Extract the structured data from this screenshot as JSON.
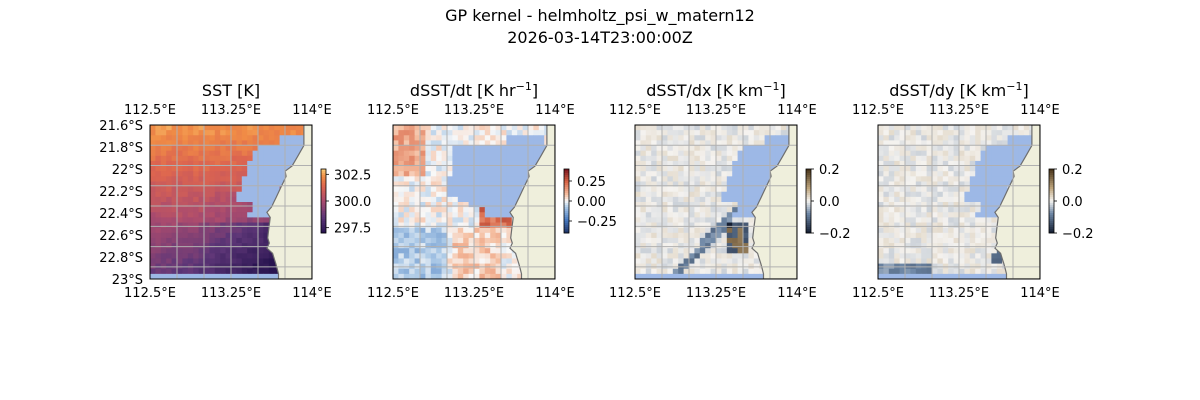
{
  "figure": {
    "title": "GP kernel - helmholtz_psi_w_matern12",
    "subtitle": "2026-03-14T23:00:00Z"
  },
  "colors": {
    "land": "#efefdc",
    "no_data_sea": "#9db8e6",
    "coastline": "#6e6e6e",
    "gridline": "#b0b0b0"
  },
  "chart_data": [
    {
      "type": "heatmap",
      "title": "SST [K]",
      "colormap": "plasma-like (dark purple to orange)",
      "x_ticks": [
        "112.5°E",
        "113.25°E",
        "114°E"
      ],
      "x_tick_values": [
        112.5,
        113.25,
        114.0
      ],
      "y_ticks": [
        "21.6°S",
        "21.8°S",
        "22°S",
        "22.2°S",
        "22.4°S",
        "22.6°S",
        "22.8°S",
        "23°S"
      ],
      "y_tick_values": [
        -21.6,
        -21.8,
        -22.0,
        -22.2,
        -22.4,
        -22.6,
        -22.8,
        -23.0
      ],
      "xlim": [
        112.5,
        114.0
      ],
      "ylim": [
        -23.0,
        -21.6
      ],
      "colorbar_ticks": [
        "302.5",
        "300.0",
        "297.5"
      ],
      "colorbar_range": [
        297.0,
        303.0
      ],
      "grid": true
    },
    {
      "type": "heatmap",
      "title_main": "dSST/dt [K hr",
      "title_sup": "−1",
      "title_end": "]",
      "colormap": "diverging blue-white-red",
      "x_ticks": [
        "112.5°E",
        "113.25°E",
        "114°E"
      ],
      "x_tick_values": [
        112.5,
        113.25,
        114.0
      ],
      "xlim": [
        112.5,
        114.0
      ],
      "ylim": [
        -23.0,
        -21.6
      ],
      "colorbar_ticks": [
        "0.25",
        "0.00",
        "−0.25"
      ],
      "colorbar_range": [
        -0.4,
        0.4
      ],
      "grid": true
    },
    {
      "type": "heatmap",
      "title_main": "dSST/dx [K km",
      "title_sup": "−1",
      "title_end": "]",
      "colormap": "diverging dark-blue-white-brown",
      "x_ticks": [
        "112.5°E",
        "113.25°E",
        "114°E"
      ],
      "x_tick_values": [
        112.5,
        113.25,
        114.0
      ],
      "xlim": [
        112.5,
        114.0
      ],
      "ylim": [
        -23.0,
        -21.6
      ],
      "colorbar_ticks": [
        "0.2",
        "0.0",
        "−0.2"
      ],
      "colorbar_range": [
        -0.2,
        0.2
      ],
      "grid": true
    },
    {
      "type": "heatmap",
      "title_main": "dSST/dy [K km",
      "title_sup": "−1",
      "title_end": "]",
      "colormap": "diverging dark-blue-white-brown",
      "x_ticks": [
        "112.5°E",
        "113.25°E",
        "114°E"
      ],
      "x_tick_values": [
        112.5,
        113.25,
        114.0
      ],
      "xlim": [
        112.5,
        114.0
      ],
      "ylim": [
        -23.0,
        -21.6
      ],
      "colorbar_ticks": [
        "0.2",
        "0.0",
        "−0.2"
      ],
      "colorbar_range": [
        -0.2,
        0.2
      ],
      "grid": true
    }
  ]
}
